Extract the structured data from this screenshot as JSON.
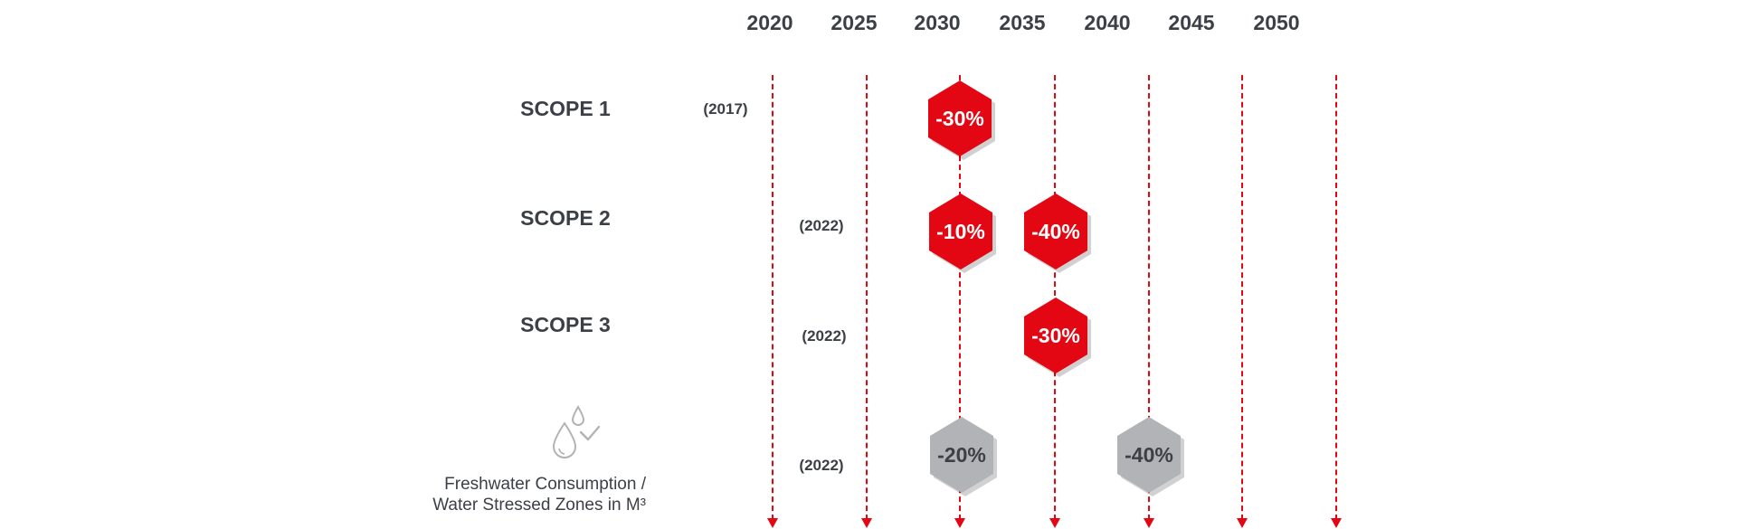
{
  "years": [
    "2020",
    "2025",
    "2030",
    "2035",
    "2040",
    "2045",
    "2050"
  ],
  "rows": [
    {
      "label": "SCOPE 1",
      "baseline": "(2017)",
      "targets": [
        "-30%"
      ]
    },
    {
      "label": "SCOPE 2",
      "baseline": "(2022)",
      "targets": [
        "-10%",
        "-40%"
      ]
    },
    {
      "label": "SCOPE 3",
      "baseline": "(2022)",
      "targets": [
        "-30%"
      ]
    },
    {
      "label_line1": "Freshwater Consumption /",
      "label_line2": "Water Stressed Zones in M³",
      "baseline": "(2022)",
      "targets": [
        "-20%",
        "-40%"
      ],
      "icon": "water-drops-check-icon"
    }
  ],
  "colors": {
    "accent": "#e30613",
    "neutral": "#b1b3b6",
    "text": "#3c3f46"
  }
}
